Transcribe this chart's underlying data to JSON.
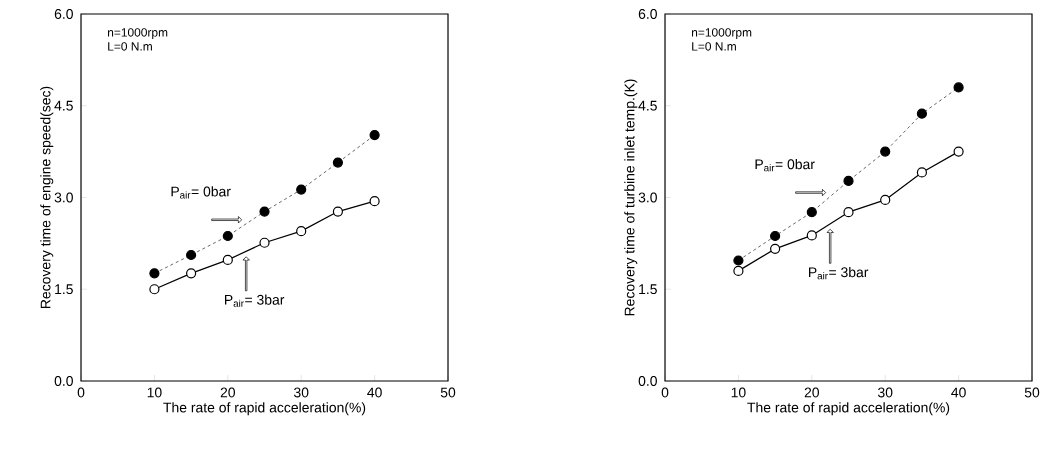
{
  "chart_data": [
    {
      "type": "line",
      "xlabel": "The rate of  rapid acceleration(%)",
      "ylabel": "Recovery time of engine speed(sec)",
      "xlim": [
        0,
        50
      ],
      "xticks": [
        0,
        10,
        20,
        30,
        40,
        50
      ],
      "ylim": [
        0,
        6
      ],
      "yticks": [
        {
          "value": 0,
          "label": "0.0"
        },
        {
          "value": 1.5,
          "label": "1.5"
        },
        {
          "value": 3,
          "label": "3.0"
        },
        {
          "value": 4.5,
          "label": "4.5"
        },
        {
          "value": 6,
          "label": "6.0"
        }
      ],
      "grid": false,
      "marker": "circle",
      "x": [
        10,
        15,
        20,
        25,
        30,
        35,
        40
      ],
      "series": [
        {
          "name": "P$_{air}$= 0bar",
          "color": "#000000",
          "line_style": "dashed",
          "values": [
            1.76,
            2.06,
            2.37,
            2.77,
            3.13,
            3.57,
            4.02
          ]
        },
        {
          "name": "P$_{air}$= 3bar",
          "color": "#000000",
          "line_style": "solid",
          "values": [
            1.5,
            1.76,
            1.98,
            2.26,
            2.45,
            2.77,
            2.94
          ]
        }
      ],
      "annotations": [
        "n=1000rpm",
        "L=0 N.m"
      ]
    },
    {
      "type": "line",
      "xlabel": "The rate of  rapid acceleration(%)",
      "ylabel": "Recovery time of turbine inlet temp.(K)",
      "xlim": [
        0,
        50
      ],
      "xticks": [
        0,
        10,
        20,
        30,
        40,
        50
      ],
      "ylim": [
        0,
        6
      ],
      "yticks": [
        {
          "value": 0,
          "label": "0.0"
        },
        {
          "value": 1.5,
          "label": "1.5"
        },
        {
          "value": 3,
          "label": "3.0"
        },
        {
          "value": 4.5,
          "label": "4.5"
        },
        {
          "value": 6,
          "label": "6.0"
        }
      ],
      "grid": false,
      "marker": "circle",
      "x": [
        10,
        15,
        20,
        25,
        30,
        35,
        40
      ],
      "series": [
        {
          "name": "P$_{air}$= 0bar",
          "color": "#000000",
          "line_style": "dashed",
          "values": [
            1.97,
            2.37,
            2.76,
            3.27,
            3.75,
            4.37,
            4.8
          ]
        },
        {
          "name": "P$_{air}$= 3bar",
          "color": "#000000",
          "line_style": "solid",
          "values": [
            1.8,
            2.16,
            2.38,
            2.76,
            2.96,
            3.41,
            3.75
          ]
        }
      ],
      "annotations": [
        "n=1000rpm",
        "L=0 N.m"
      ]
    }
  ]
}
